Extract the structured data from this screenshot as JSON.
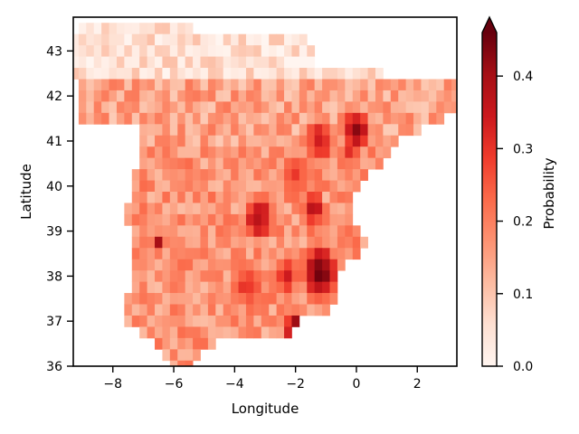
{
  "chart_data": {
    "type": "heatmap",
    "title": "",
    "xlabel": "Longitude",
    "ylabel": "Latitude",
    "xlim": [
      -9.3,
      3.3
    ],
    "ylim": [
      36.0,
      43.75
    ],
    "xticks": [
      -8,
      -6,
      -4,
      -2,
      0,
      2
    ],
    "xtick_labels": [
      "−8",
      "−6",
      "−4",
      "−2",
      "0",
      "2"
    ],
    "yticks": [
      36,
      37,
      38,
      39,
      40,
      41,
      42,
      43
    ],
    "ytick_labels": [
      "36",
      "37",
      "38",
      "39",
      "40",
      "41",
      "42",
      "43"
    ],
    "grid": false,
    "cell_size_deg": 0.25,
    "colormap": "Reds",
    "colormap_stops": [
      "#fff5f0",
      "#fee0d2",
      "#fcbba1",
      "#fc9272",
      "#fb6a4a",
      "#ef3b2c",
      "#cb181d",
      "#a50f15",
      "#67000d"
    ],
    "colorbar": {
      "label": "Probability",
      "range": [
        0.0,
        0.46
      ],
      "extend": "max",
      "ticks": [
        0.0,
        0.1,
        0.2,
        0.3,
        0.4
      ],
      "tick_labels": [
        "0.0",
        "0.1",
        "0.2",
        "0.3",
        "0.4"
      ]
    },
    "mask_rows": {
      "43.50": [
        [
          -9.0,
          -5.5
        ]
      ],
      "43.25": [
        [
          -9.25,
          -1.75
        ]
      ],
      "43.00": [
        [
          -9.25,
          -1.5
        ]
      ],
      "42.75": [
        [
          -9.25,
          -1.5
        ]
      ],
      "42.50": [
        [
          -9.25,
          0.75
        ]
      ],
      "42.25": [
        [
          -9.0,
          3.25
        ]
      ],
      "42.00": [
        [
          -9.0,
          3.25
        ]
      ],
      "41.75": [
        [
          -9.0,
          3.25
        ]
      ],
      "41.50": [
        [
          -9.0,
          2.75
        ]
      ],
      "41.25": [
        [
          -7.0,
          2.0
        ]
      ],
      "41.00": [
        [
          -7.0,
          1.25
        ]
      ],
      "40.75": [
        [
          -7.0,
          1.0
        ]
      ],
      "40.50": [
        [
          -7.0,
          0.75
        ]
      ],
      "40.25": [
        [
          -7.25,
          0.25
        ]
      ],
      "40.00": [
        [
          -7.25,
          0.0
        ]
      ],
      "39.75": [
        [
          -7.25,
          -0.25
        ]
      ],
      "39.50": [
        [
          -7.5,
          -0.25
        ]
      ],
      "39.25": [
        [
          -7.5,
          -0.25
        ]
      ],
      "39.00": [
        [
          -7.25,
          0.0
        ]
      ],
      "38.75": [
        [
          -7.25,
          0.25
        ]
      ],
      "38.50": [
        [
          -7.25,
          0.0
        ]
      ],
      "38.25": [
        [
          -7.25,
          -0.5
        ]
      ],
      "38.00": [
        [
          -7.25,
          -0.75
        ]
      ],
      "37.75": [
        [
          -7.25,
          -0.75
        ]
      ],
      "37.50": [
        [
          -7.5,
          -0.75
        ]
      ],
      "37.25": [
        [
          -7.5,
          -1.0
        ]
      ],
      "37.00": [
        [
          -7.5,
          -2.0
        ]
      ],
      "36.75": [
        [
          -7.0,
          -2.25
        ]
      ],
      "36.50": [
        [
          -6.5,
          -4.75
        ]
      ],
      "36.25": [
        [
          -6.25,
          -5.25
        ]
      ],
      "36.00": [
        [
          -6.0,
          -5.5
        ]
      ]
    },
    "hotspots": [
      {
        "lon": -1.2,
        "lat": 38.1,
        "value": 0.46,
        "radius_deg": 0.7
      },
      {
        "lon": -2.0,
        "lat": 36.85,
        "value": 0.43,
        "radius_deg": 0.5
      },
      {
        "lon": -3.2,
        "lat": 39.3,
        "value": 0.4,
        "radius_deg": 0.6
      },
      {
        "lon": 0.0,
        "lat": 41.25,
        "value": 0.42,
        "radius_deg": 0.55
      },
      {
        "lon": -1.2,
        "lat": 41.0,
        "value": 0.36,
        "radius_deg": 0.6
      },
      {
        "lon": -1.4,
        "lat": 39.5,
        "value": 0.38,
        "radius_deg": 0.45
      },
      {
        "lon": -3.6,
        "lat": 37.8,
        "value": 0.3,
        "radius_deg": 0.7
      },
      {
        "lon": -2.3,
        "lat": 38.0,
        "value": 0.32,
        "radius_deg": 0.6
      },
      {
        "lon": -6.5,
        "lat": 38.8,
        "value": 0.42,
        "radius_deg": 0.2
      },
      {
        "lon": -2.0,
        "lat": 40.2,
        "value": 0.28,
        "radius_deg": 0.8
      },
      {
        "lon": -0.2,
        "lat": 40.8,
        "value": 0.3,
        "radius_deg": 0.5
      }
    ],
    "regional_baseline": [
      {
        "lat_min": 42.4,
        "value": 0.05
      },
      {
        "lat_min": 41.0,
        "value": 0.15
      },
      {
        "lat_min": 36.0,
        "value": 0.17
      }
    ]
  }
}
